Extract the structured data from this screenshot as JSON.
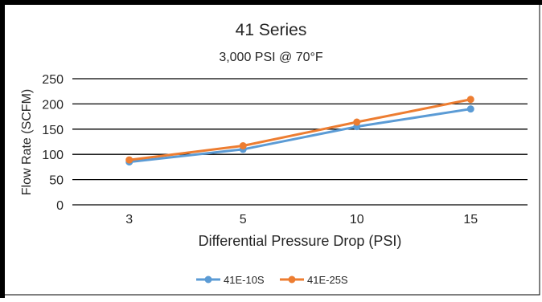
{
  "chart_data": {
    "type": "line",
    "title": "41 Series",
    "subtitle": "3,000 PSI @ 70°F",
    "xlabel": "Differential Pressure Drop (PSI)",
    "ylabel": "Flow Rate (SCFM)",
    "categories": [
      "3",
      "5",
      "10",
      "15"
    ],
    "ylim": [
      0,
      250
    ],
    "yticks": [
      "0",
      "50",
      "100",
      "150",
      "200",
      "250"
    ],
    "grid": true,
    "legend_position": "bottom",
    "series": [
      {
        "name": "41E-10S",
        "color": "#5b9bd5",
        "values": [
          85,
          110,
          155,
          190
        ]
      },
      {
        "name": "41E-25S",
        "color": "#ed7d31",
        "values": [
          89,
          117,
          164,
          209
        ]
      }
    ]
  }
}
